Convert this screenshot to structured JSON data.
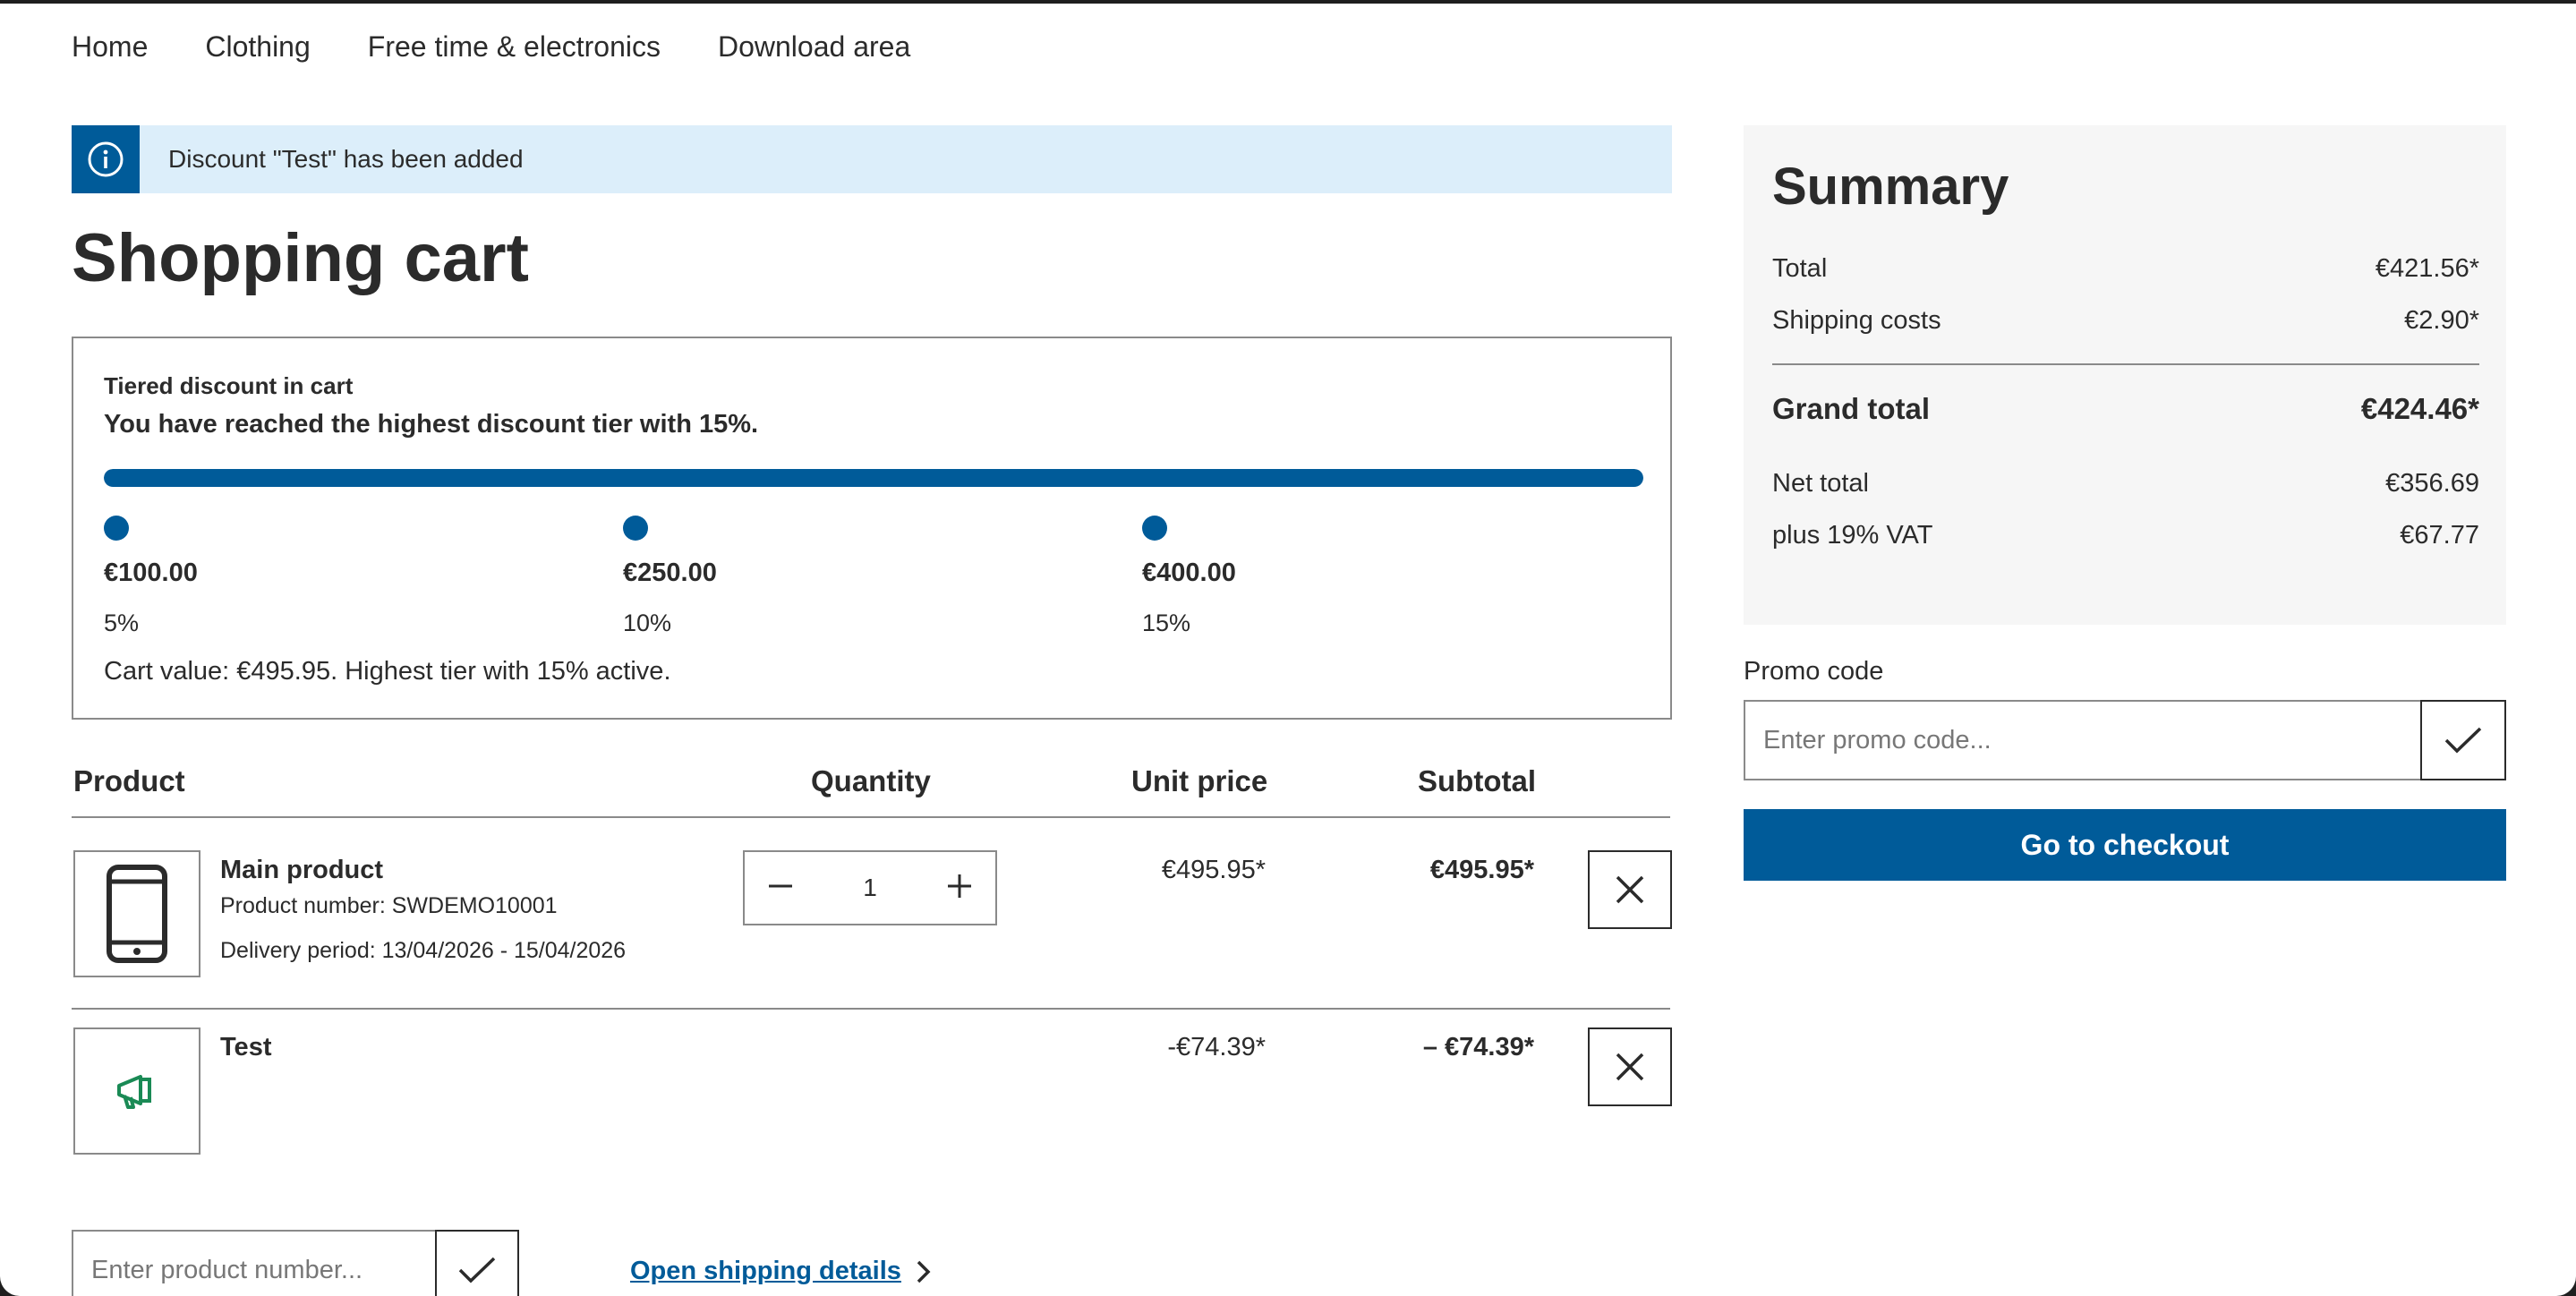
{
  "nav": {
    "items": [
      "Home",
      "Clothing",
      "Free time & electronics",
      "Download area"
    ]
  },
  "alert": {
    "icon": "info-icon",
    "message": "Discount \"Test\" has been added"
  },
  "page_title": "Shopping cart",
  "tiered_discount": {
    "label": "Tiered discount in cart",
    "message": "You have reached the highest discount tier with 15%.",
    "progress_fraction": 1.0,
    "tiers": [
      {
        "amount": "€100.00",
        "percent": "5%"
      },
      {
        "amount": "€250.00",
        "percent": "10%"
      },
      {
        "amount": "€400.00",
        "percent": "15%"
      }
    ],
    "cart_value_text": "Cart value: €495.95. Highest tier with 15% active."
  },
  "table": {
    "headers": {
      "product": "Product",
      "quantity": "Quantity",
      "unit_price": "Unit price",
      "subtotal": "Subtotal"
    },
    "rows": [
      {
        "icon": "smartphone-icon",
        "name": "Main product",
        "product_number": "Product number: SWDEMO10001",
        "delivery": "Delivery period: 13/04/2026 - 15/04/2026",
        "quantity": "1",
        "unit_price": "€495.95*",
        "subtotal": "€495.95*"
      },
      {
        "icon": "megaphone-icon",
        "name": "Test",
        "unit_price": "-€74.39*",
        "subtotal": "– €74.39*"
      }
    ]
  },
  "product_number_input": {
    "placeholder": "Enter product number..."
  },
  "shipping_link": "Open shipping details",
  "summary": {
    "title": "Summary",
    "total_label": "Total",
    "total_value": "€421.56*",
    "shipping_label": "Shipping costs",
    "shipping_value": "€2.90*",
    "grand_label": "Grand total",
    "grand_value": "€424.46*",
    "net_label": "Net total",
    "net_value": "€356.69",
    "vat_label": "plus 19% VAT",
    "vat_value": "€67.77"
  },
  "promo": {
    "label": "Promo code",
    "placeholder": "Enter promo code..."
  },
  "checkout_label": "Go to checkout",
  "colors": {
    "primary": "#005b99",
    "alert_bg": "#dceefa",
    "promo_icon": "#1a8a55"
  }
}
